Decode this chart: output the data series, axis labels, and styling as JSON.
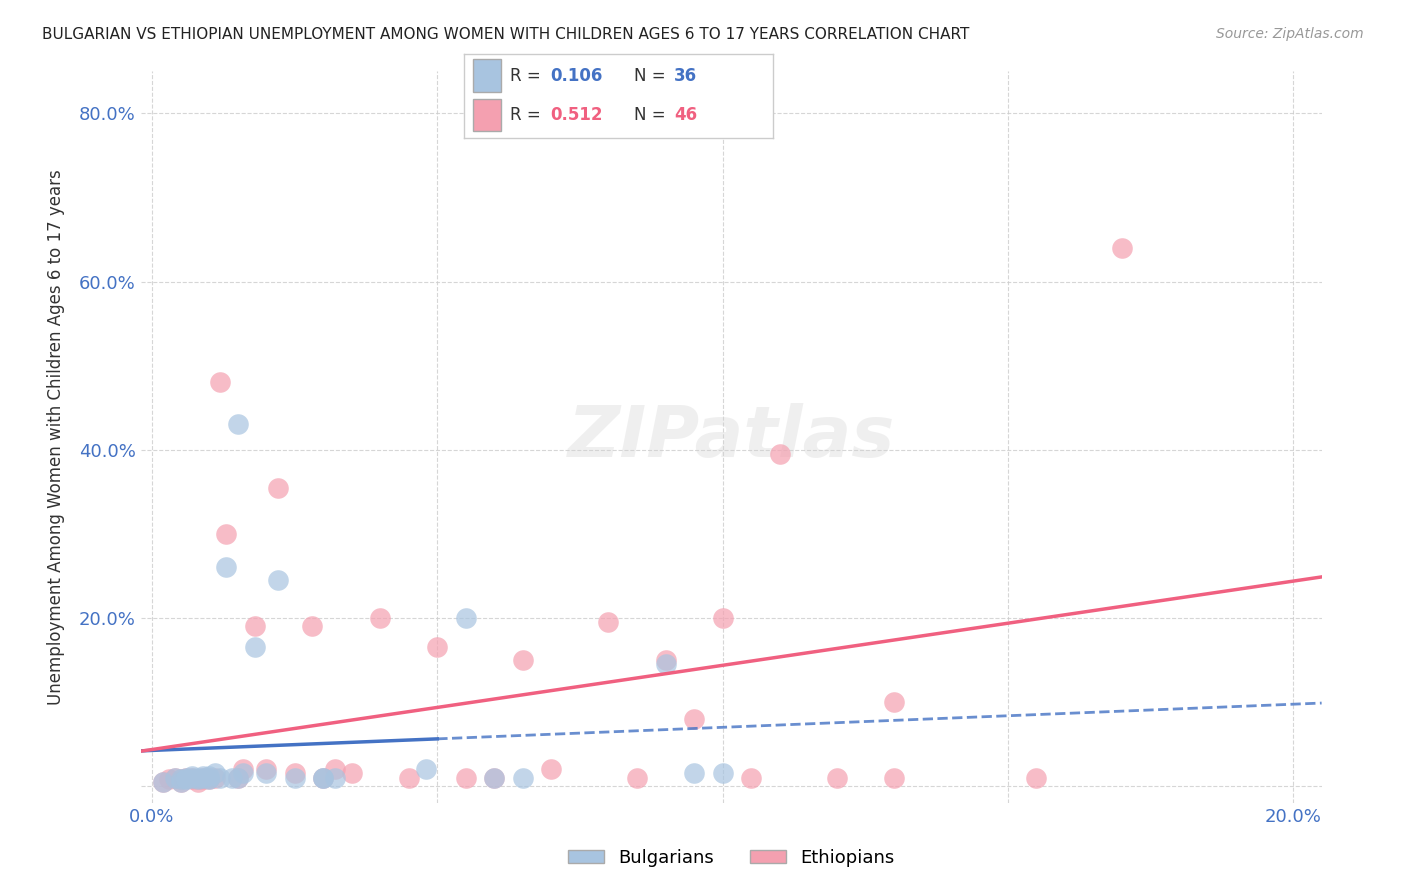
{
  "title": "BULGARIAN VS ETHIOPIAN UNEMPLOYMENT AMONG WOMEN WITH CHILDREN AGES 6 TO 17 YEARS CORRELATION CHART",
  "source": "Source: ZipAtlas.com",
  "ylabel": "Unemployment Among Women with Children Ages 6 to 17 years",
  "x_min": -0.002,
  "x_max": 0.205,
  "y_min": -0.02,
  "y_max": 0.85,
  "x_ticks": [
    0.0,
    0.05,
    0.1,
    0.15,
    0.2
  ],
  "x_tick_labels": [
    "0.0%",
    "",
    "",
    "",
    "20.0%"
  ],
  "y_ticks": [
    0.0,
    0.2,
    0.4,
    0.6,
    0.8
  ],
  "y_tick_labels": [
    "",
    "20.0%",
    "40.0%",
    "60.0%",
    "80.0%"
  ],
  "bulgarian_R": "0.106",
  "bulgarian_N": "36",
  "ethiopian_R": "0.512",
  "ethiopian_N": "46",
  "bulgarian_color": "#a8c4e0",
  "ethiopian_color": "#f4a0b0",
  "bulgarian_line_color": "#4472c4",
  "ethiopian_line_color": "#f06080",
  "bg_color": "#ffffff",
  "grid_color": "#cccccc",
  "bulgarians_x": [
    0.002,
    0.004,
    0.005,
    0.005,
    0.006,
    0.006,
    0.007,
    0.007,
    0.008,
    0.008,
    0.009,
    0.009,
    0.01,
    0.01,
    0.01,
    0.011,
    0.012,
    0.013,
    0.014,
    0.015,
    0.016,
    0.018,
    0.02,
    0.022,
    0.025,
    0.03,
    0.03,
    0.032,
    0.048,
    0.055,
    0.06,
    0.065,
    0.09,
    0.095,
    0.1,
    0.015
  ],
  "bulgarians_y": [
    0.005,
    0.01,
    0.008,
    0.005,
    0.01,
    0.008,
    0.01,
    0.012,
    0.008,
    0.01,
    0.012,
    0.01,
    0.01,
    0.008,
    0.012,
    0.015,
    0.01,
    0.26,
    0.01,
    0.01,
    0.015,
    0.165,
    0.015,
    0.245,
    0.01,
    0.01,
    0.01,
    0.01,
    0.02,
    0.2,
    0.01,
    0.01,
    0.145,
    0.015,
    0.015,
    0.43
  ],
  "ethiopians_x": [
    0.002,
    0.003,
    0.004,
    0.005,
    0.005,
    0.006,
    0.007,
    0.007,
    0.008,
    0.008,
    0.009,
    0.009,
    0.01,
    0.01,
    0.011,
    0.012,
    0.013,
    0.015,
    0.016,
    0.018,
    0.02,
    0.022,
    0.025,
    0.028,
    0.03,
    0.032,
    0.035,
    0.04,
    0.045,
    0.05,
    0.055,
    0.06,
    0.065,
    0.07,
    0.08,
    0.085,
    0.09,
    0.095,
    0.1,
    0.105,
    0.11,
    0.12,
    0.13,
    0.155,
    0.17,
    0.13
  ],
  "ethiopians_y": [
    0.005,
    0.008,
    0.01,
    0.005,
    0.008,
    0.01,
    0.008,
    0.01,
    0.008,
    0.005,
    0.008,
    0.01,
    0.01,
    0.008,
    0.01,
    0.48,
    0.3,
    0.01,
    0.02,
    0.19,
    0.02,
    0.355,
    0.015,
    0.19,
    0.01,
    0.02,
    0.015,
    0.2,
    0.01,
    0.165,
    0.01,
    0.01,
    0.15,
    0.02,
    0.195,
    0.01,
    0.15,
    0.08,
    0.2,
    0.01,
    0.395,
    0.01,
    0.01,
    0.01,
    0.64,
    0.1
  ]
}
